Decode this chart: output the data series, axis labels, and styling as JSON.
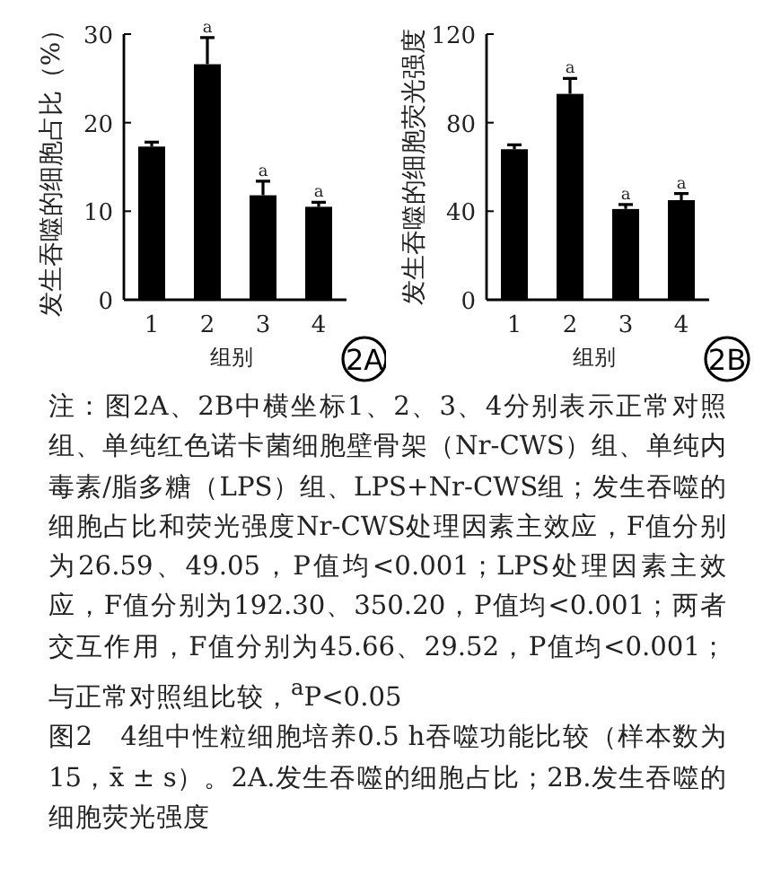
{
  "chart_data": [
    {
      "type": "bar",
      "categories": [
        "1",
        "2",
        "3",
        "4"
      ],
      "values": [
        17.3,
        26.6,
        11.8,
        10.5
      ],
      "errors": [
        0.5,
        3.0,
        1.6,
        0.5
      ],
      "color": "#000000",
      "ylabel": "发生吞噬的细胞占比（%）",
      "xlabel": "组别",
      "ylim": [
        0,
        30
      ],
      "yticks": [
        0,
        10,
        20,
        30
      ],
      "grid": false,
      "annotations": [
        {
          "text": "a",
          "x": "2",
          "y": 29.6
        },
        {
          "text": "a",
          "x": "3",
          "y": 13.4
        },
        {
          "text": "a",
          "x": "4",
          "y": 11.0
        },
        "2A",
        "注：图2A、2B中横坐标1、2、3、4分别表示正常对照组、单纯红色诺卡菌细胞壁骨架（Nr-CWS）组、单纯内毒素/脂多糖（LPS）组、LPS+Nr-CWS组；发生吞噬的细胞占比和荧光强度Nr-CWS处理因素主效应，F值分别为26.59、49.05，P值均<0.001；LPS处理因素主效应，F值分别为192.30、350.20，P值均<0.001；两者交互作用，F值分别为45.66、29.52，P值均<0.001；与正常对照组比较，$^{a}$P<0.05",
        "图2　4组中性粒细胞培养0.5 h吞噬功能比较（样本数为15，x̄ ± s）。2A.发生吞噬的细胞占比；2B.发生吞噬的细胞荧光强度"
      ]
    },
    {
      "type": "bar",
      "categories": [
        "1",
        "2",
        "3",
        "4"
      ],
      "values": [
        68,
        93,
        41,
        45
      ],
      "errors": [
        2,
        7,
        2,
        3
      ],
      "color": "#000000",
      "ylabel": "发生吞噬的细胞荧光强度",
      "xlabel": "组别",
      "ylim": [
        0,
        120
      ],
      "yticks": [
        0,
        40,
        80,
        120
      ],
      "grid": false,
      "annotations": [
        {
          "text": "a",
          "x": "2",
          "y": 100
        },
        {
          "text": "a",
          "x": "3",
          "y": 43
        },
        {
          "text": "a",
          "x": "4",
          "y": 48
        },
        "2B"
      ]
    }
  ]
}
